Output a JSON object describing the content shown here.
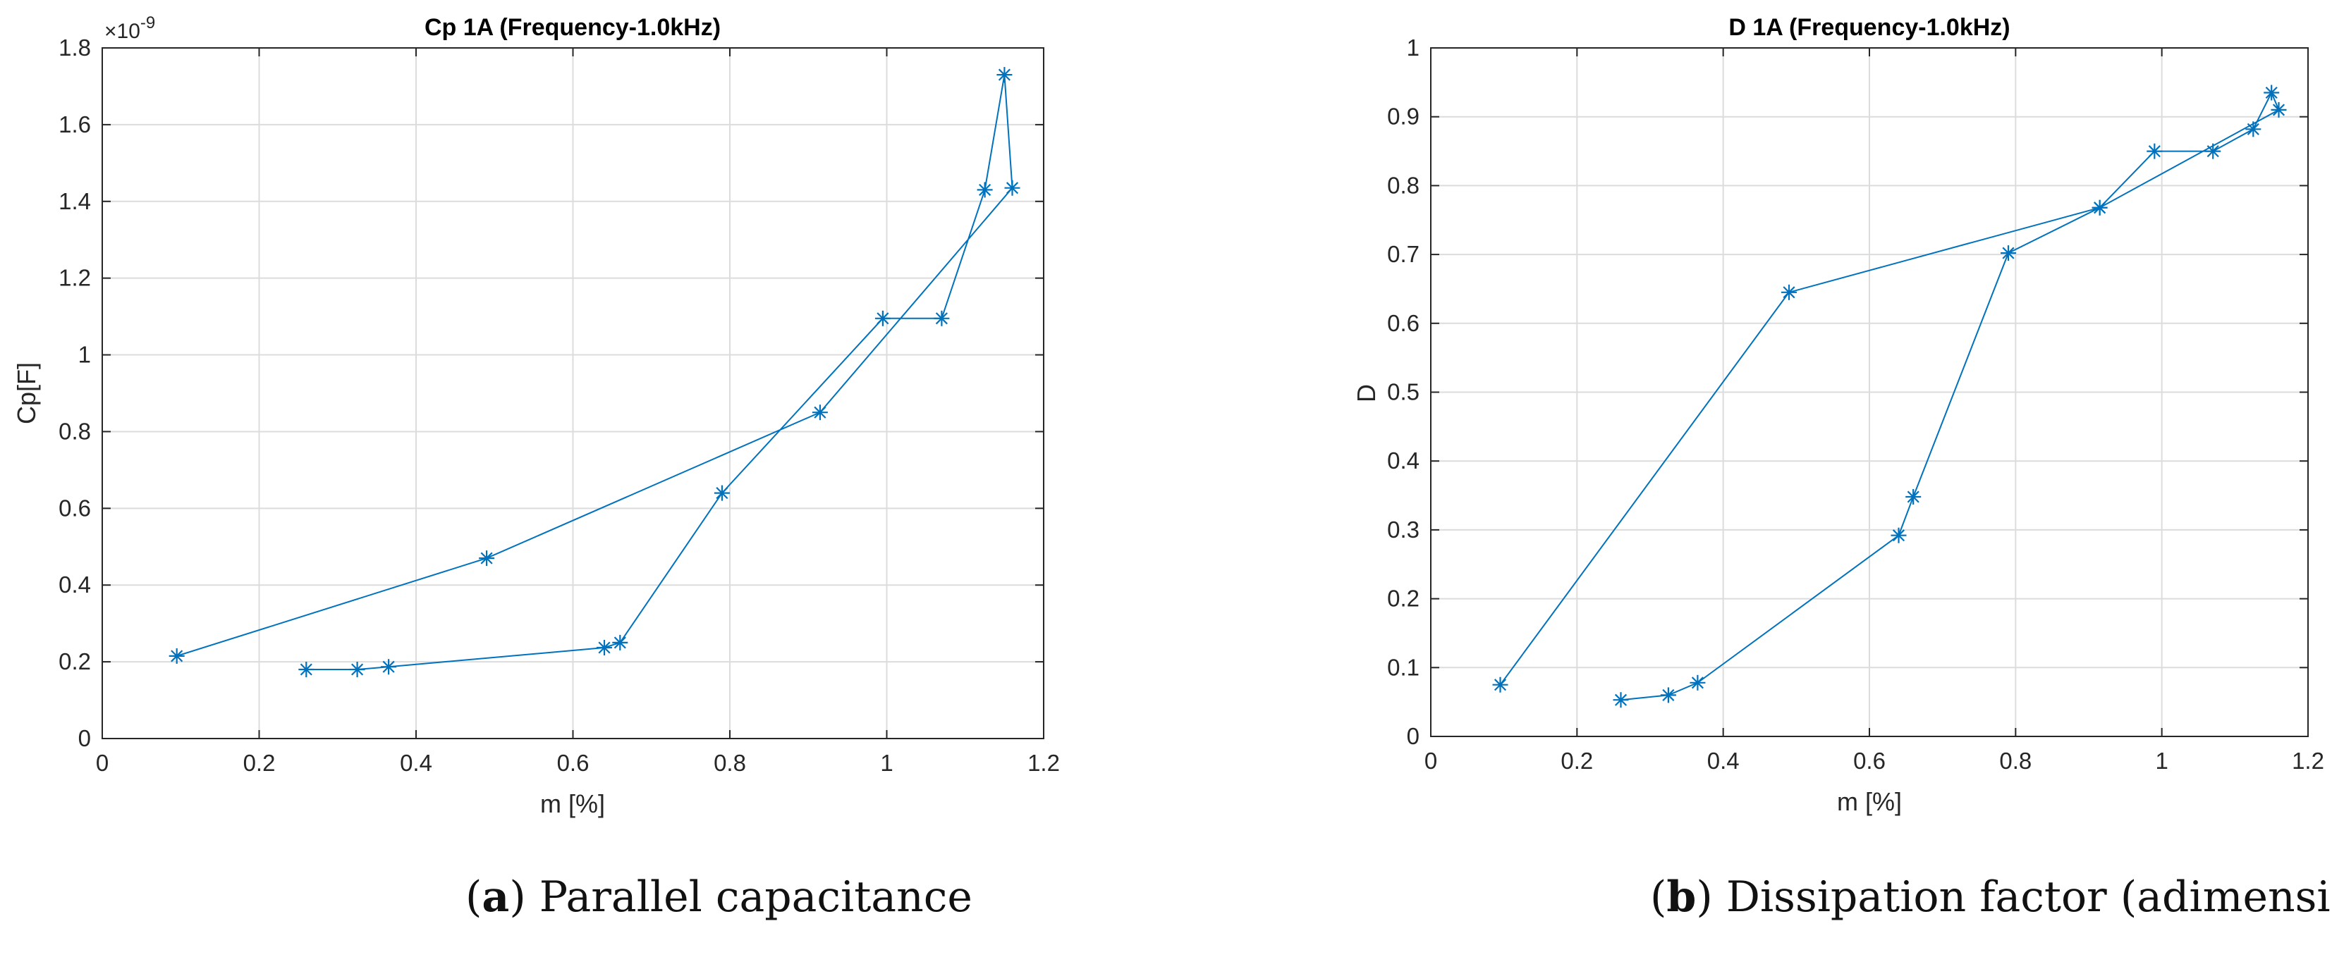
{
  "chart_data": [
    {
      "type": "line",
      "title": "Cp 1A (Frequency-1.0kHz)",
      "xlabel": "m [%]",
      "ylabel": "Cp[F]",
      "y_exponent": "×10",
      "y_exponent_power": "-9",
      "xlim": [
        0,
        1.2
      ],
      "ylim": [
        0,
        1.8
      ],
      "xticks": [
        "0",
        "0.2",
        "0.4",
        "0.6",
        "0.8",
        "1",
        "1.2"
      ],
      "yticks": [
        "0",
        "0.2",
        "0.4",
        "0.6",
        "0.8",
        "1",
        "1.2",
        "1.4",
        "1.6",
        "1.8"
      ],
      "xtick_values": [
        0,
        0.2,
        0.4,
        0.6,
        0.8,
        1.0,
        1.2
      ],
      "ytick_values": [
        0,
        0.2,
        0.4,
        0.6,
        0.8,
        1.0,
        1.2,
        1.4,
        1.6,
        1.8
      ],
      "grid": true,
      "marker": "asterisk",
      "color": "#0072BD",
      "series": [
        {
          "x": [
            0.26,
            0.325,
            0.365,
            0.64,
            0.66,
            0.79,
            0.995,
            1.07,
            1.125,
            1.15,
            1.16,
            0.915,
            0.49,
            0.095
          ],
          "y": [
            0.18,
            0.18,
            0.187,
            0.237,
            0.25,
            0.64,
            1.095,
            1.095,
            1.43,
            1.73,
            1.435,
            0.85,
            0.47,
            0.215
          ]
        }
      ],
      "caption_letter": "a",
      "caption_text": "Parallel capacitance"
    },
    {
      "type": "line",
      "title": "D 1A (Frequency-1.0kHz)",
      "xlabel": "m [%]",
      "ylabel": "D",
      "xlim": [
        0,
        1.2
      ],
      "ylim": [
        0,
        1
      ],
      "xticks": [
        "0",
        "0.2",
        "0.4",
        "0.6",
        "0.8",
        "1",
        "1.2"
      ],
      "yticks": [
        "0",
        "0.1",
        "0.2",
        "0.3",
        "0.4",
        "0.5",
        "0.6",
        "0.7",
        "0.8",
        "0.9",
        "1"
      ],
      "xtick_values": [
        0,
        0.2,
        0.4,
        0.6,
        0.8,
        1.0,
        1.2
      ],
      "ytick_values": [
        0,
        0.1,
        0.2,
        0.3,
        0.4,
        0.5,
        0.6,
        0.7,
        0.8,
        0.9,
        1.0
      ],
      "grid": true,
      "marker": "asterisk",
      "color": "#0072BD",
      "series": [
        {
          "x": [
            0.095,
            0.49,
            0.915,
            1.16,
            1.15,
            1.125,
            1.07,
            0.99,
            0.915,
            0.79,
            0.66,
            0.64,
            0.365,
            0.325,
            0.26
          ],
          "y": [
            0.075,
            0.645,
            0.768,
            0.91,
            0.935,
            0.882,
            0.85,
            0.85,
            0.768,
            0.702,
            0.348,
            0.292,
            0.078,
            0.06,
            0.053
          ]
        }
      ],
      "caption_letter": "b",
      "caption_text": "Dissipation factor (adimensional)"
    }
  ]
}
